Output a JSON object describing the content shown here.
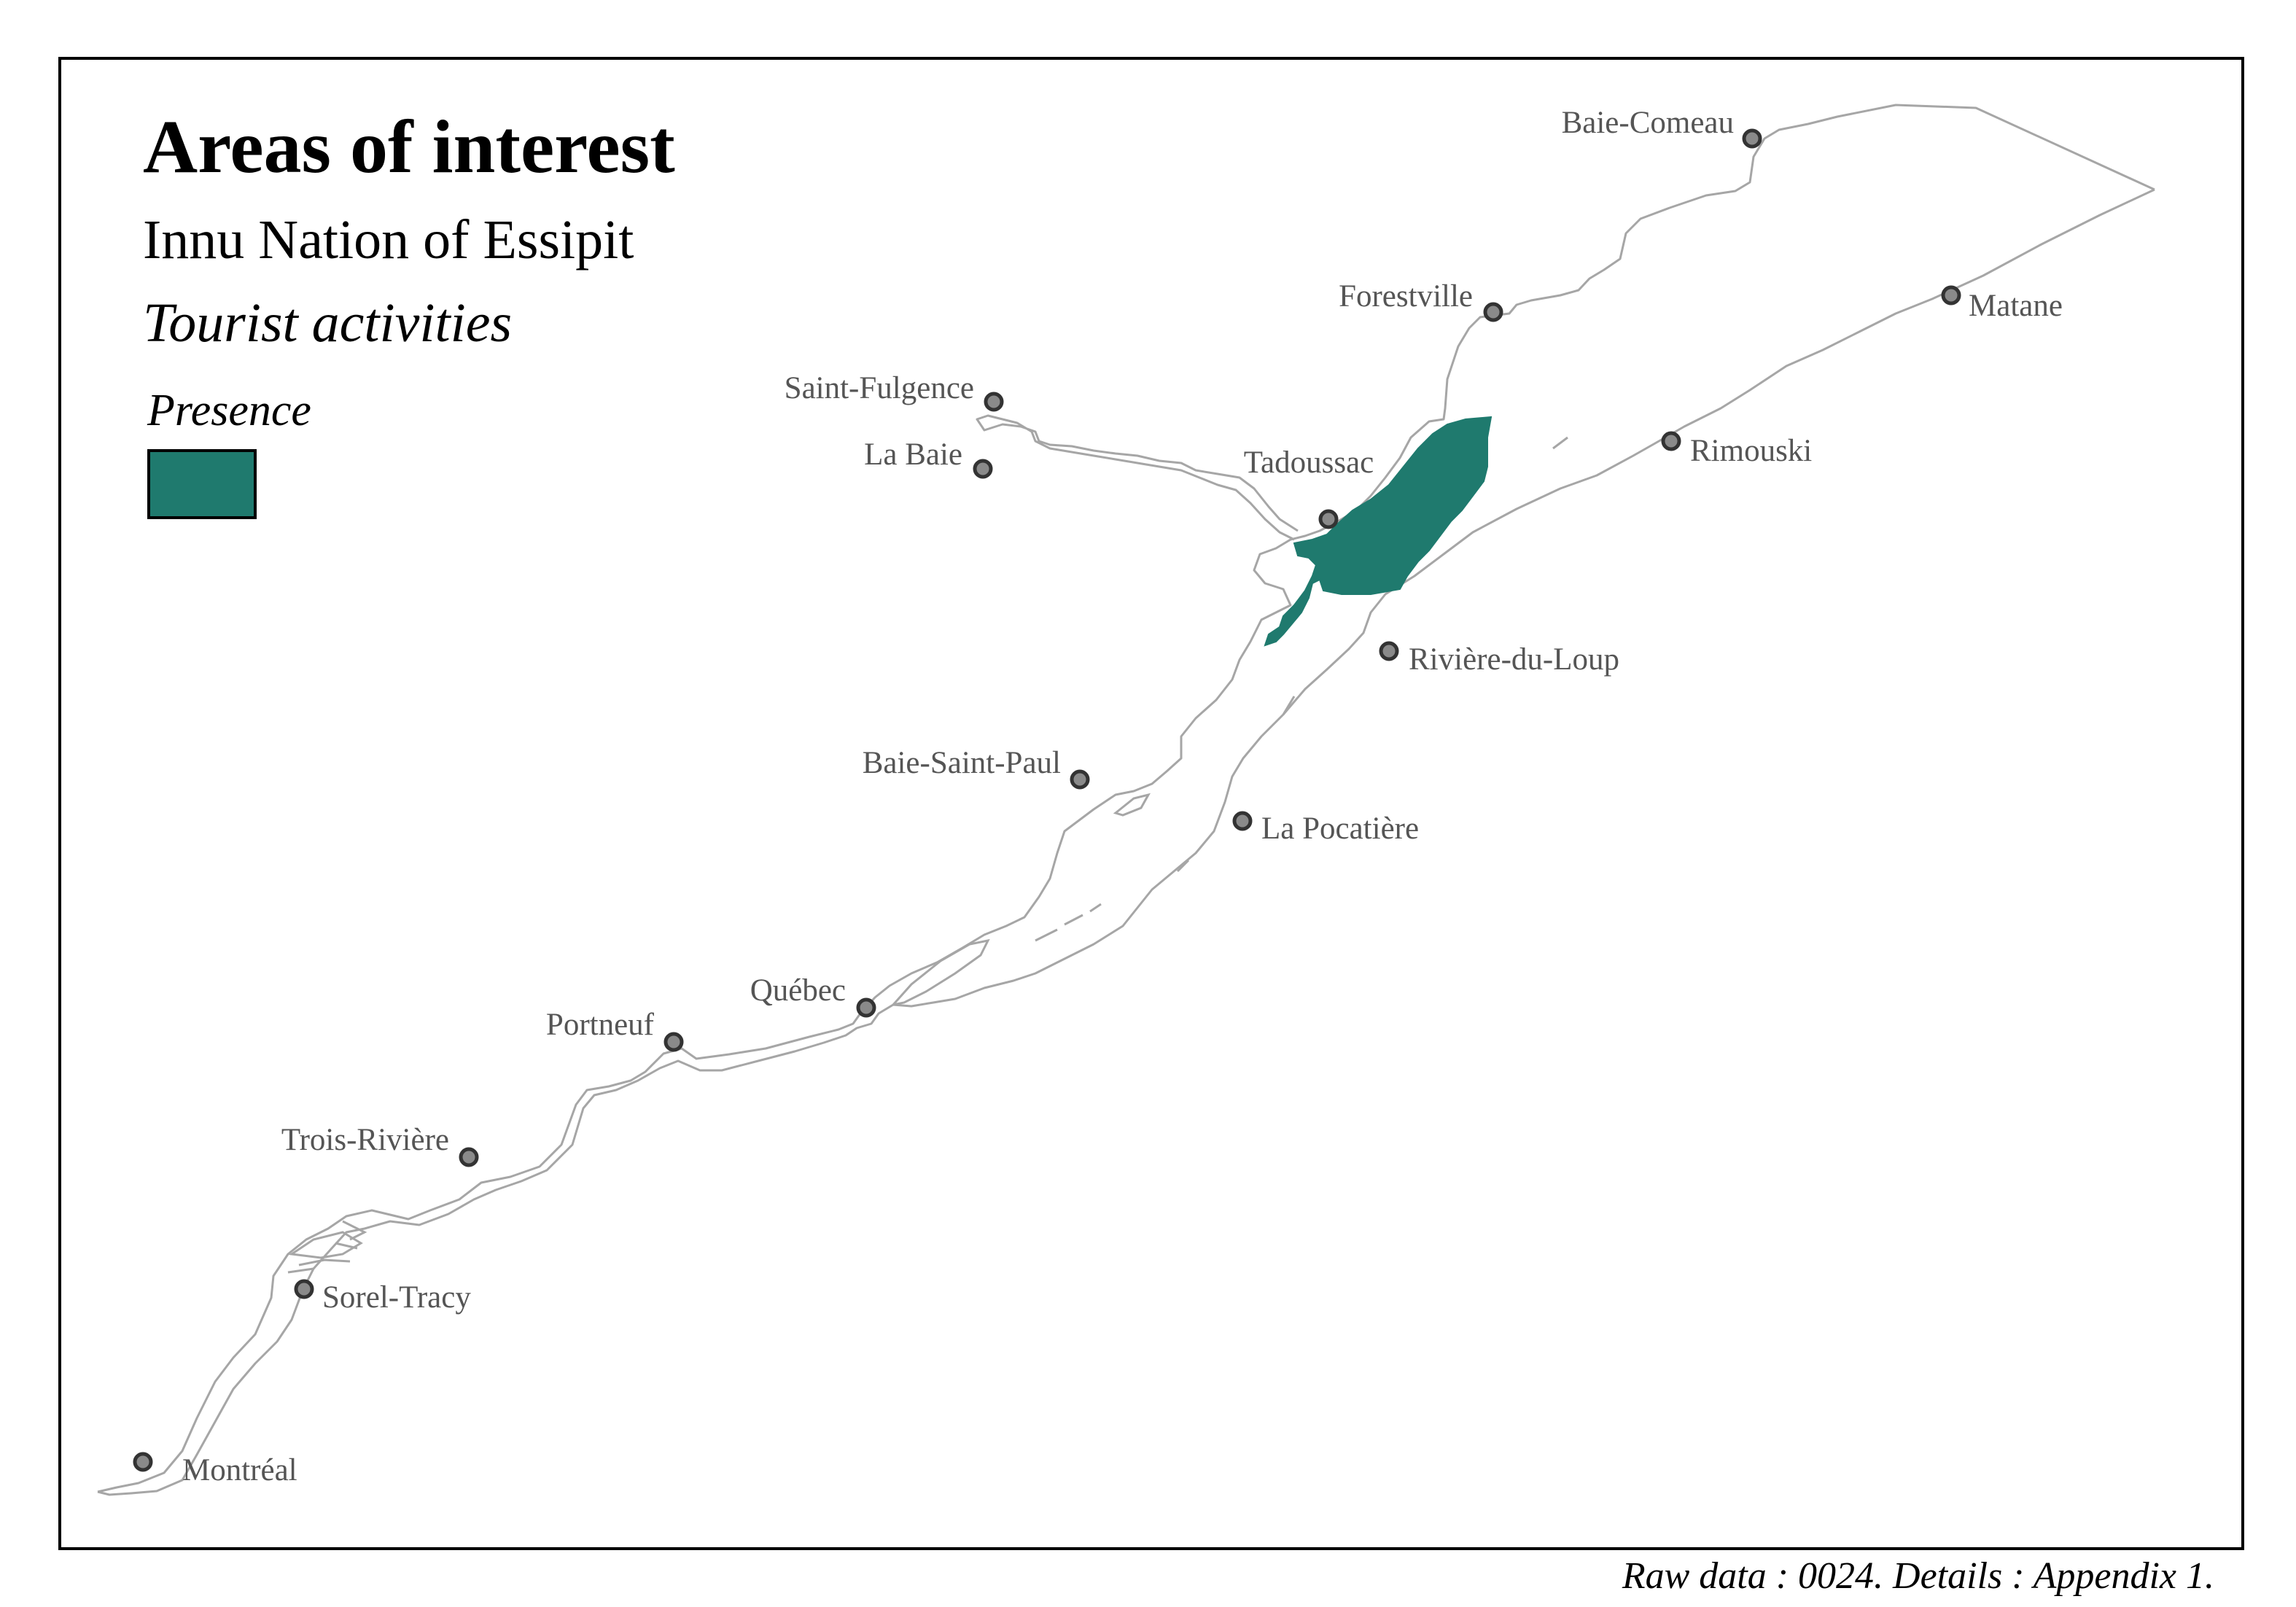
{
  "title": "Areas of interest",
  "subtitle": "Innu Nation of Essipit",
  "theme": "Tourist activities",
  "legend": {
    "title": "Presence",
    "color": "#1f7a6e"
  },
  "caption": "Raw data : 0024. Details : Appendix 1.",
  "colors": {
    "area": "#1f7a6e",
    "coastline": "#a6a6a6",
    "city_marker": "#8a8a8a",
    "city_label": "#555555"
  },
  "cities": [
    {
      "id": "baie-comeau",
      "name": "Baie-Comeau"
    },
    {
      "id": "forestville",
      "name": "Forestville"
    },
    {
      "id": "matane",
      "name": "Matane"
    },
    {
      "id": "saint-fulgence",
      "name": "Saint-Fulgence"
    },
    {
      "id": "la-baie",
      "name": "La Baie"
    },
    {
      "id": "tadoussac",
      "name": "Tadoussac"
    },
    {
      "id": "rimouski",
      "name": "Rimouski"
    },
    {
      "id": "riviere-du-loup",
      "name": "Rivière-du-Loup"
    },
    {
      "id": "baie-saint-paul",
      "name": "Baie-Saint-Paul"
    },
    {
      "id": "la-pocatiere",
      "name": "La Pocatière"
    },
    {
      "id": "quebec",
      "name": "Québec"
    },
    {
      "id": "portneuf",
      "name": "Portneuf"
    },
    {
      "id": "trois-riviere",
      "name": "Trois-Rivière"
    },
    {
      "id": "sorel-tracy",
      "name": "Sorel-Tracy"
    },
    {
      "id": "montreal",
      "name": "Montréal"
    }
  ]
}
